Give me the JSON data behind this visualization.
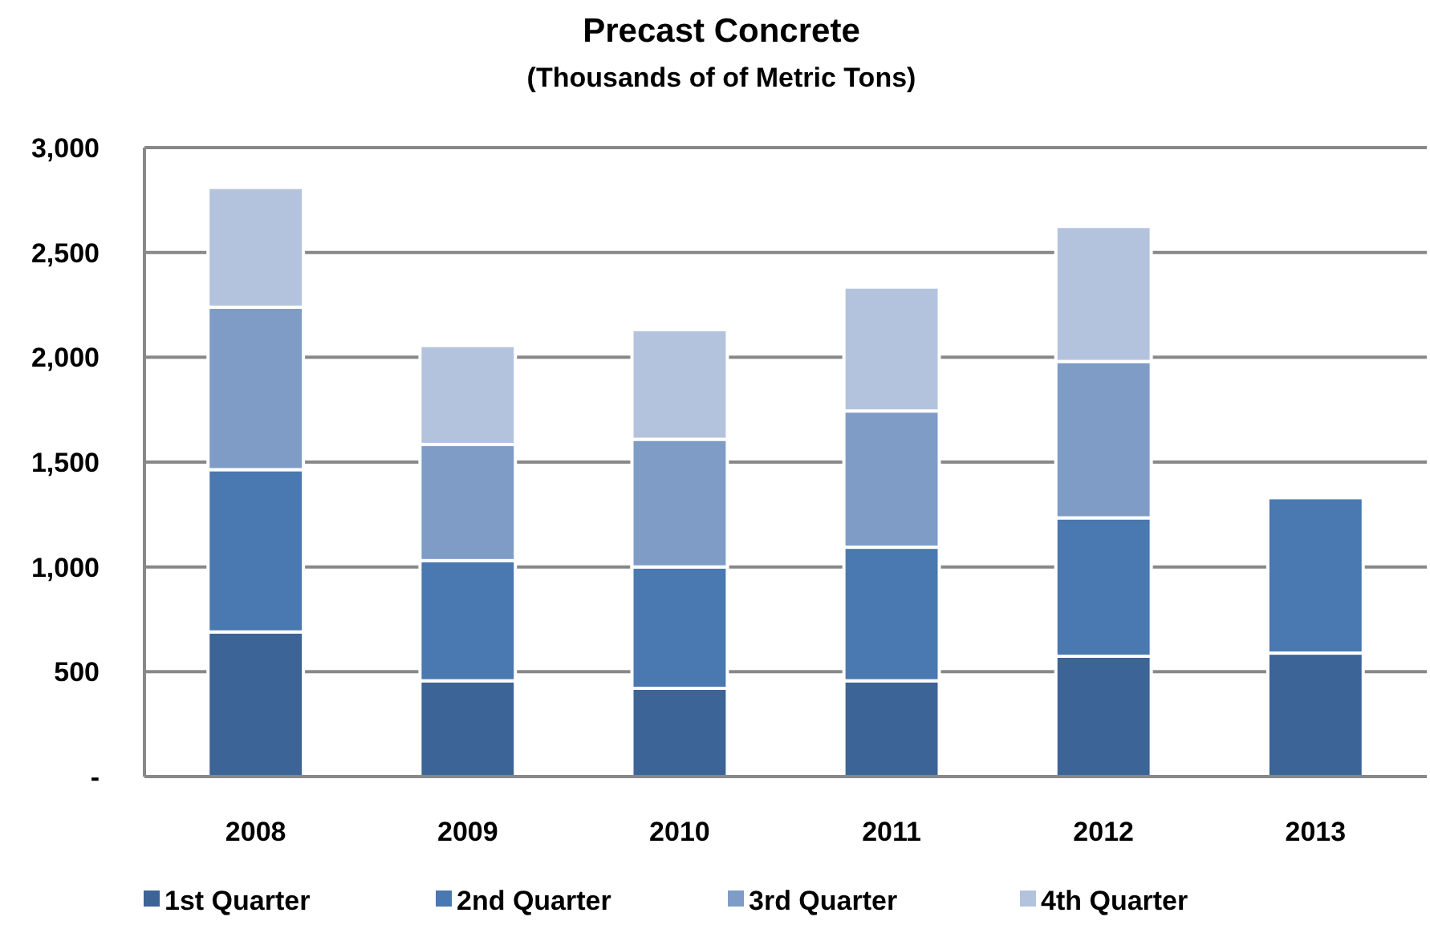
{
  "chart_data": {
    "type": "bar",
    "title": "Precast Concrete",
    "subtitle": "(Thousands of of Metric Tons)",
    "stacked": true,
    "categories": [
      "2008",
      "2009",
      "2010",
      "2011",
      "2012",
      "2013"
    ],
    "series": [
      {
        "name": "1st Quarter",
        "color": "#3d6496",
        "values": [
          690,
          457,
          421,
          457,
          574,
          589
        ]
      },
      {
        "name": "2nd Quarter",
        "color": "#4a78b0",
        "values": [
          774,
          573,
          579,
          637,
          660,
          741
        ]
      },
      {
        "name": "3rd Quarter",
        "color": "#7f9cc7",
        "values": [
          775,
          554,
          609,
          650,
          746,
          null
        ]
      },
      {
        "name": "4th Quarter",
        "color": "#b4c3dd",
        "values": [
          571,
          472,
          523,
          591,
          644,
          null
        ]
      }
    ],
    "ylim": [
      0,
      3000
    ],
    "yticks": [
      {
        "value": 0,
        "label": "-"
      },
      500,
      {
        "value": 1000,
        "label": "1,000"
      },
      {
        "value": 1500,
        "label": "1,500"
      },
      {
        "value": 2000,
        "label": "2,000"
      },
      {
        "value": 2500,
        "label": "2,500"
      },
      {
        "value": 3000,
        "label": "3,000"
      }
    ],
    "grid": "y",
    "legend": "bottom"
  }
}
